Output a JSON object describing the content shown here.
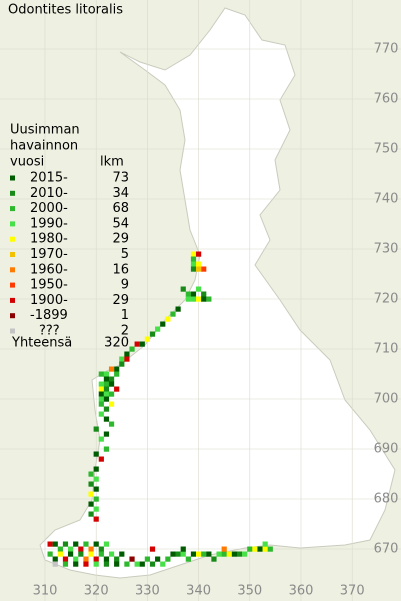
{
  "map": {
    "title": "Odontites litoralis",
    "legend": {
      "heading": [
        "Uusimman",
        "havainnon",
        "vuosi"
      ],
      "count_heading": "lkm",
      "items": [
        {
          "label": "2015-",
          "count": 73,
          "color": "#005c00"
        },
        {
          "label": "2010-",
          "count": 34,
          "color": "#178a17"
        },
        {
          "label": "2000-",
          "count": 68,
          "color": "#2db82d"
        },
        {
          "label": "1990-",
          "count": 54,
          "color": "#48e048"
        },
        {
          "label": "1980-",
          "count": 29,
          "color": "#ffff00"
        },
        {
          "label": "1970-",
          "count": 5,
          "color": "#f2c200"
        },
        {
          "label": "1960-",
          "count": 16,
          "color": "#ff7a00"
        },
        {
          "label": "1950-",
          "count": 9,
          "color": "#ff3a00"
        },
        {
          "label": "1900-",
          "count": 29,
          "color": "#d40000"
        },
        {
          "label": "-1899",
          "count": 1,
          "color": "#8c0000"
        },
        {
          "label": "???",
          "count": 2,
          "color": "#c4c4c4"
        }
      ],
      "total_label": "Yhteensä",
      "total": 320
    },
    "xticks": [
      310,
      320,
      330,
      340,
      350,
      360,
      370
    ],
    "yticks": [
      770,
      760,
      750,
      740,
      730,
      720,
      710,
      700,
      690,
      680,
      670
    ],
    "squares": [
      [
        339,
        729,
        4
      ],
      [
        340,
        729,
        8
      ],
      [
        339,
        728,
        2
      ],
      [
        339,
        727,
        3
      ],
      [
        340,
        727,
        4
      ],
      [
        339,
        726,
        1
      ],
      [
        341,
        726,
        7
      ],
      [
        340,
        726,
        5
      ],
      [
        337,
        722,
        1
      ],
      [
        338,
        721,
        2
      ],
      [
        339,
        721,
        0
      ],
      [
        340,
        722,
        3
      ],
      [
        341,
        721,
        1
      ],
      [
        342,
        720,
        2
      ],
      [
        339,
        720,
        3
      ],
      [
        340,
        720,
        4
      ],
      [
        341,
        720,
        0
      ],
      [
        338,
        720,
        3
      ],
      [
        336,
        718,
        0
      ],
      [
        335,
        717,
        2
      ],
      [
        334,
        716,
        4
      ],
      [
        333,
        715,
        0
      ],
      [
        332,
        714,
        3
      ],
      [
        331,
        713,
        1
      ],
      [
        330,
        712,
        4
      ],
      [
        329,
        711,
        0
      ],
      [
        328,
        711,
        8
      ],
      [
        327,
        710,
        2
      ],
      [
        326,
        709,
        0
      ],
      [
        325,
        708,
        3
      ],
      [
        325,
        707,
        1
      ],
      [
        324,
        706,
        0
      ],
      [
        324,
        705,
        2
      ],
      [
        323,
        706,
        6
      ],
      [
        326,
        708,
        8
      ],
      [
        322,
        705,
        3
      ],
      [
        321,
        705,
        2
      ],
      [
        322,
        704,
        0
      ],
      [
        323,
        704,
        1
      ],
      [
        321,
        703,
        3
      ],
      [
        322,
        703,
        2
      ],
      [
        323,
        703,
        0
      ],
      [
        321,
        702,
        4
      ],
      [
        322,
        702,
        1
      ],
      [
        324,
        702,
        8
      ],
      [
        321,
        701,
        0
      ],
      [
        322,
        701,
        3
      ],
      [
        323,
        701,
        2
      ],
      [
        321,
        700,
        3
      ],
      [
        322,
        700,
        0
      ],
      [
        323,
        699,
        4
      ],
      [
        321,
        699,
        2
      ],
      [
        322,
        698,
        1
      ],
      [
        321,
        697,
        3
      ],
      [
        322,
        696,
        0
      ],
      [
        323,
        695,
        2
      ],
      [
        320,
        694,
        1
      ],
      [
        322,
        693,
        0
      ],
      [
        321,
        692,
        3
      ],
      [
        322,
        690,
        2
      ],
      [
        320,
        689,
        0
      ],
      [
        321,
        688,
        8
      ],
      [
        320,
        686,
        0
      ],
      [
        319,
        685,
        2
      ],
      [
        320,
        684,
        3
      ],
      [
        319,
        683,
        1
      ],
      [
        320,
        682,
        0
      ],
      [
        319,
        681,
        4
      ],
      [
        320,
        680,
        2
      ],
      [
        319,
        679,
        0
      ],
      [
        320,
        678,
        3
      ],
      [
        319,
        677,
        1
      ],
      [
        320,
        676,
        8
      ],
      [
        311,
        671,
        8
      ],
      [
        312,
        671,
        0
      ],
      [
        313,
        670,
        2
      ],
      [
        314,
        671,
        1
      ],
      [
        315,
        670,
        3
      ],
      [
        316,
        671,
        0
      ],
      [
        317,
        670,
        8
      ],
      [
        318,
        671,
        2
      ],
      [
        319,
        670,
        6
      ],
      [
        320,
        671,
        0
      ],
      [
        321,
        670,
        1
      ],
      [
        322,
        671,
        3
      ],
      [
        311,
        669,
        2
      ],
      [
        312,
        668,
        0
      ],
      [
        313,
        669,
        4
      ],
      [
        314,
        668,
        8
      ],
      [
        315,
        669,
        0
      ],
      [
        316,
        668,
        3
      ],
      [
        317,
        669,
        1
      ],
      [
        318,
        668,
        6
      ],
      [
        319,
        669,
        4
      ],
      [
        320,
        668,
        8
      ],
      [
        321,
        669,
        2
      ],
      [
        322,
        668,
        0
      ],
      [
        323,
        669,
        3
      ],
      [
        324,
        668,
        1
      ],
      [
        325,
        669,
        0
      ],
      [
        312,
        667,
        10
      ],
      [
        314,
        667,
        2
      ],
      [
        316,
        667,
        0
      ],
      [
        318,
        667,
        8
      ],
      [
        320,
        667,
        3
      ],
      [
        322,
        667,
        1
      ],
      [
        324,
        667,
        0
      ],
      [
        326,
        667,
        2
      ],
      [
        327,
        668,
        9
      ],
      [
        328,
        667,
        3
      ],
      [
        329,
        667,
        0
      ],
      [
        330,
        668,
        2
      ],
      [
        331,
        667,
        1
      ],
      [
        332,
        668,
        0
      ],
      [
        333,
        667,
        3
      ],
      [
        334,
        668,
        2
      ],
      [
        335,
        669,
        0
      ],
      [
        336,
        669,
        1
      ],
      [
        337,
        669,
        3
      ],
      [
        338,
        668,
        2
      ],
      [
        339,
        669,
        0
      ],
      [
        340,
        669,
        4
      ],
      [
        341,
        669,
        2
      ],
      [
        342,
        669,
        0
      ],
      [
        343,
        668,
        1
      ],
      [
        344,
        669,
        3
      ],
      [
        345,
        669,
        2
      ],
      [
        346,
        669,
        4
      ],
      [
        347,
        669,
        0
      ],
      [
        348,
        669,
        1
      ],
      [
        349,
        669,
        3
      ],
      [
        350,
        670,
        2
      ],
      [
        351,
        670,
        4
      ],
      [
        352,
        670,
        0
      ],
      [
        353,
        670,
        4
      ],
      [
        354,
        670,
        2
      ],
      [
        353,
        671,
        3
      ],
      [
        345,
        670,
        6
      ],
      [
        337,
        670,
        0
      ],
      [
        331,
        670,
        8
      ]
    ]
  }
}
